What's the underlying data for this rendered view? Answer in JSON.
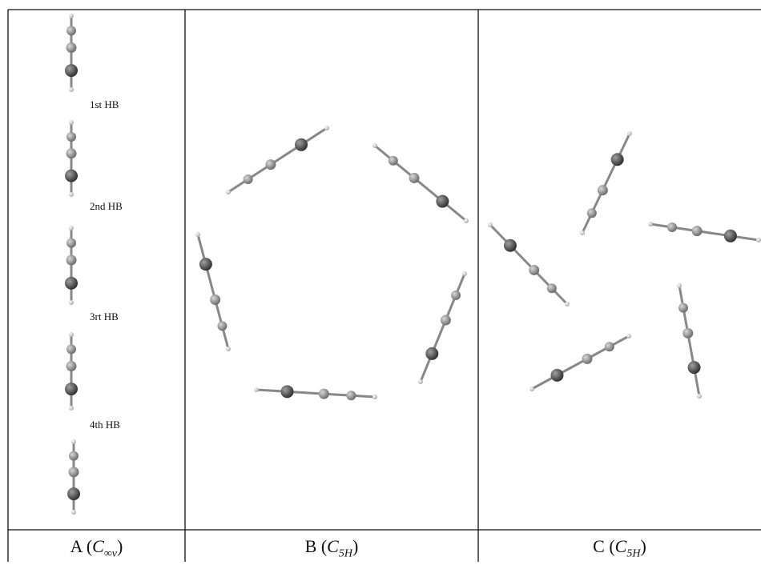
{
  "panel_a": {
    "hb_labels": [
      "1st HB",
      "2nd HB",
      "3rt HB",
      "4th HB"
    ]
  },
  "captions": [
    {
      "letter": "A (",
      "symbol": "C",
      "subscript": "∞v",
      "close": ")"
    },
    {
      "letter": "B (",
      "symbol": "C",
      "subscript": "5H",
      "close": ")"
    },
    {
      "letter": "C (",
      "symbol": "C",
      "subscript": "5H",
      "close": ")"
    }
  ]
}
